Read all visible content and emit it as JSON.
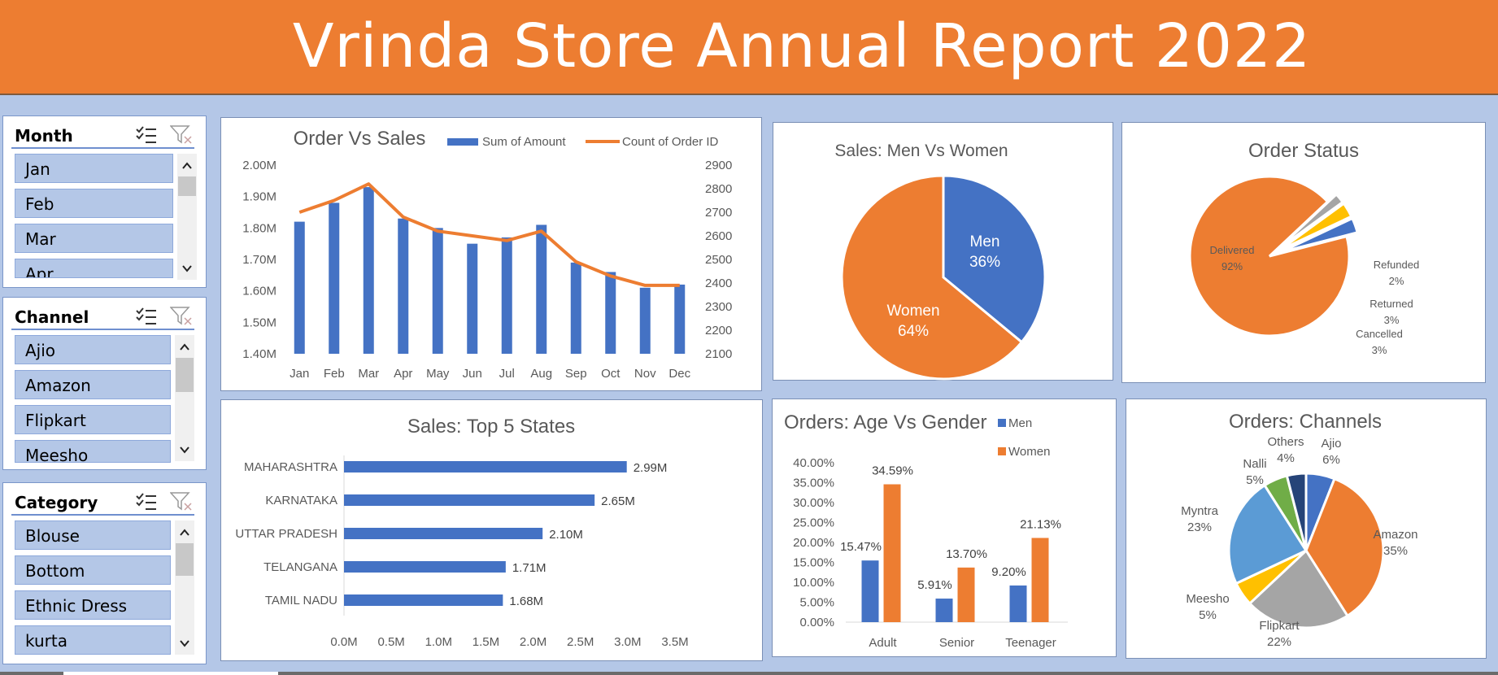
{
  "header": {
    "title": "Vrinda Store Annual Report 2022"
  },
  "slicers": {
    "month": {
      "title": "Month",
      "items": [
        "Jan",
        "Feb",
        "Mar",
        "Apr"
      ]
    },
    "channel": {
      "title": "Channel",
      "items": [
        "Ajio",
        "Amazon",
        "Flipkart",
        "Meesho"
      ]
    },
    "category": {
      "title": "Category",
      "items": [
        "Blouse",
        "Bottom",
        "Ethnic Dress",
        "kurta"
      ]
    }
  },
  "colors": {
    "blue": "#4472c4",
    "orange": "#ed7d31",
    "gray": "#a5a5a5",
    "yellow": "#ffc000",
    "lightblue": "#5b9bd5",
    "green": "#70ad47",
    "navy": "#264478"
  },
  "chart_data": [
    {
      "id": "order_vs_sales",
      "type": "bar",
      "title": "Order Vs Sales",
      "categories": [
        "Jan",
        "Feb",
        "Mar",
        "Apr",
        "May",
        "Jun",
        "Jul",
        "Aug",
        "Sep",
        "Oct",
        "Nov",
        "Dec"
      ],
      "series": [
        {
          "name": "Sum of Amount",
          "type": "bar",
          "axis": "left",
          "values": [
            1.82,
            1.88,
            1.93,
            1.83,
            1.8,
            1.75,
            1.77,
            1.81,
            1.69,
            1.66,
            1.61,
            1.62
          ]
        },
        {
          "name": "Count of Order ID",
          "type": "line",
          "axis": "right",
          "values": [
            2700,
            2750,
            2820,
            2680,
            2620,
            2600,
            2580,
            2620,
            2490,
            2430,
            2390,
            2390
          ]
        }
      ],
      "y_left": {
        "ticks": [
          "2.00M",
          "1.90M",
          "1.80M",
          "1.70M",
          "1.60M",
          "1.50M",
          "1.40M"
        ],
        "ylim": [
          1.4,
          2.0
        ]
      },
      "y_right": {
        "ticks": [
          "2900",
          "2800",
          "2700",
          "2600",
          "2500",
          "2400",
          "2300",
          "2200",
          "2100"
        ],
        "ylim": [
          2100,
          2900
        ]
      },
      "legend": "top"
    },
    {
      "id": "sales_men_women",
      "type": "pie",
      "title": "Sales: Men Vs Women",
      "slices": [
        {
          "label": "Men",
          "value": 36,
          "text": "36%",
          "color": "#4472c4"
        },
        {
          "label": "Women",
          "value": 64,
          "text": "64%",
          "color": "#ed7d31"
        }
      ]
    },
    {
      "id": "order_status",
      "type": "pie",
      "title": "Order Status",
      "slices": [
        {
          "label": "Delivered",
          "value": 92,
          "text": "92%",
          "color": "#ed7d31"
        },
        {
          "label": "Refunded",
          "value": 2,
          "text": "2%",
          "color": "#a5a5a5"
        },
        {
          "label": "Returned",
          "value": 3,
          "text": "3%",
          "color": "#ffc000"
        },
        {
          "label": "Cancelled",
          "value": 3,
          "text": "3%",
          "color": "#4472c4"
        }
      ]
    },
    {
      "id": "top5_states",
      "type": "bar",
      "orientation": "horizontal",
      "title": "Sales: Top 5 States",
      "categories": [
        "MAHARASHTRA",
        "KARNATAKA",
        "UTTAR PRADESH",
        "TELANGANA",
        "TAMIL NADU"
      ],
      "values": [
        2.99,
        2.65,
        2.1,
        1.71,
        1.68
      ],
      "labels": [
        "2.99M",
        "2.65M",
        "2.10M",
        "1.71M",
        "1.68M"
      ],
      "x_ticks": [
        "0.0M",
        "0.5M",
        "1.0M",
        "1.5M",
        "2.0M",
        "2.5M",
        "3.0M",
        "3.5M"
      ],
      "xlim": [
        0,
        3.5
      ]
    },
    {
      "id": "age_vs_gender",
      "type": "bar",
      "title": "Orders: Age Vs Gender",
      "categories": [
        "Adult",
        "Senior",
        "Teenager"
      ],
      "series": [
        {
          "name": "Men",
          "values": [
            15.47,
            5.91,
            9.2
          ],
          "labels": [
            "15.47%",
            "5.91%",
            "9.20%"
          ],
          "color": "#4472c4"
        },
        {
          "name": "Women",
          "values": [
            34.59,
            13.7,
            21.13
          ],
          "labels": [
            "34.59%",
            "13.70%",
            "21.13%"
          ],
          "color": "#ed7d31"
        }
      ],
      "y_ticks": [
        "40.00%",
        "35.00%",
        "30.00%",
        "25.00%",
        "20.00%",
        "15.00%",
        "10.00%",
        "5.00%",
        "0.00%"
      ],
      "ylim": [
        0,
        40
      ],
      "legend": "top-right"
    },
    {
      "id": "orders_channels",
      "type": "pie",
      "title": "Orders: Channels",
      "slices": [
        {
          "label": "Ajio",
          "value": 6,
          "text": "6%",
          "color": "#4472c4"
        },
        {
          "label": "Amazon",
          "value": 35,
          "text": "35%",
          "color": "#ed7d31"
        },
        {
          "label": "Flipkart",
          "value": 22,
          "text": "22%",
          "color": "#a5a5a5"
        },
        {
          "label": "Meesho",
          "value": 5,
          "text": "5%",
          "color": "#ffc000"
        },
        {
          "label": "Myntra",
          "value": 23,
          "text": "23%",
          "color": "#5b9bd5"
        },
        {
          "label": "Nalli",
          "value": 5,
          "text": "5%",
          "color": "#70ad47"
        },
        {
          "label": "Others",
          "value": 4,
          "text": "4%",
          "color": "#264478"
        }
      ]
    }
  ]
}
